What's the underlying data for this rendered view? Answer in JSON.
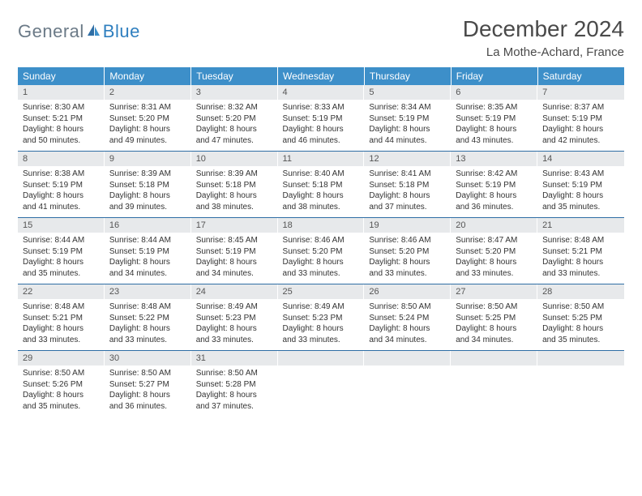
{
  "logo": {
    "part1": "General",
    "part2": "Blue"
  },
  "title": "December 2024",
  "location": "La Mothe-Achard, France",
  "colors": {
    "header_bg": "#3d8fc9",
    "row_divider": "#2f6ea5",
    "daynum_bg": "#e7e9eb",
    "logo_gray": "#6b7a87",
    "logo_blue": "#2f7fbf"
  },
  "layout": {
    "columns": 7,
    "rows": 5
  },
  "weekdays": [
    "Sunday",
    "Monday",
    "Tuesday",
    "Wednesday",
    "Thursday",
    "Friday",
    "Saturday"
  ],
  "days": [
    {
      "n": "1",
      "sunrise": "Sunrise: 8:30 AM",
      "sunset": "Sunset: 5:21 PM",
      "day1": "Daylight: 8 hours",
      "day2": "and 50 minutes."
    },
    {
      "n": "2",
      "sunrise": "Sunrise: 8:31 AM",
      "sunset": "Sunset: 5:20 PM",
      "day1": "Daylight: 8 hours",
      "day2": "and 49 minutes."
    },
    {
      "n": "3",
      "sunrise": "Sunrise: 8:32 AM",
      "sunset": "Sunset: 5:20 PM",
      "day1": "Daylight: 8 hours",
      "day2": "and 47 minutes."
    },
    {
      "n": "4",
      "sunrise": "Sunrise: 8:33 AM",
      "sunset": "Sunset: 5:19 PM",
      "day1": "Daylight: 8 hours",
      "day2": "and 46 minutes."
    },
    {
      "n": "5",
      "sunrise": "Sunrise: 8:34 AM",
      "sunset": "Sunset: 5:19 PM",
      "day1": "Daylight: 8 hours",
      "day2": "and 44 minutes."
    },
    {
      "n": "6",
      "sunrise": "Sunrise: 8:35 AM",
      "sunset": "Sunset: 5:19 PM",
      "day1": "Daylight: 8 hours",
      "day2": "and 43 minutes."
    },
    {
      "n": "7",
      "sunrise": "Sunrise: 8:37 AM",
      "sunset": "Sunset: 5:19 PM",
      "day1": "Daylight: 8 hours",
      "day2": "and 42 minutes."
    },
    {
      "n": "8",
      "sunrise": "Sunrise: 8:38 AM",
      "sunset": "Sunset: 5:19 PM",
      "day1": "Daylight: 8 hours",
      "day2": "and 41 minutes."
    },
    {
      "n": "9",
      "sunrise": "Sunrise: 8:39 AM",
      "sunset": "Sunset: 5:18 PM",
      "day1": "Daylight: 8 hours",
      "day2": "and 39 minutes."
    },
    {
      "n": "10",
      "sunrise": "Sunrise: 8:39 AM",
      "sunset": "Sunset: 5:18 PM",
      "day1": "Daylight: 8 hours",
      "day2": "and 38 minutes."
    },
    {
      "n": "11",
      "sunrise": "Sunrise: 8:40 AM",
      "sunset": "Sunset: 5:18 PM",
      "day1": "Daylight: 8 hours",
      "day2": "and 38 minutes."
    },
    {
      "n": "12",
      "sunrise": "Sunrise: 8:41 AM",
      "sunset": "Sunset: 5:18 PM",
      "day1": "Daylight: 8 hours",
      "day2": "and 37 minutes."
    },
    {
      "n": "13",
      "sunrise": "Sunrise: 8:42 AM",
      "sunset": "Sunset: 5:19 PM",
      "day1": "Daylight: 8 hours",
      "day2": "and 36 minutes."
    },
    {
      "n": "14",
      "sunrise": "Sunrise: 8:43 AM",
      "sunset": "Sunset: 5:19 PM",
      "day1": "Daylight: 8 hours",
      "day2": "and 35 minutes."
    },
    {
      "n": "15",
      "sunrise": "Sunrise: 8:44 AM",
      "sunset": "Sunset: 5:19 PM",
      "day1": "Daylight: 8 hours",
      "day2": "and 35 minutes."
    },
    {
      "n": "16",
      "sunrise": "Sunrise: 8:44 AM",
      "sunset": "Sunset: 5:19 PM",
      "day1": "Daylight: 8 hours",
      "day2": "and 34 minutes."
    },
    {
      "n": "17",
      "sunrise": "Sunrise: 8:45 AM",
      "sunset": "Sunset: 5:19 PM",
      "day1": "Daylight: 8 hours",
      "day2": "and 34 minutes."
    },
    {
      "n": "18",
      "sunrise": "Sunrise: 8:46 AM",
      "sunset": "Sunset: 5:20 PM",
      "day1": "Daylight: 8 hours",
      "day2": "and 33 minutes."
    },
    {
      "n": "19",
      "sunrise": "Sunrise: 8:46 AM",
      "sunset": "Sunset: 5:20 PM",
      "day1": "Daylight: 8 hours",
      "day2": "and 33 minutes."
    },
    {
      "n": "20",
      "sunrise": "Sunrise: 8:47 AM",
      "sunset": "Sunset: 5:20 PM",
      "day1": "Daylight: 8 hours",
      "day2": "and 33 minutes."
    },
    {
      "n": "21",
      "sunrise": "Sunrise: 8:48 AM",
      "sunset": "Sunset: 5:21 PM",
      "day1": "Daylight: 8 hours",
      "day2": "and 33 minutes."
    },
    {
      "n": "22",
      "sunrise": "Sunrise: 8:48 AM",
      "sunset": "Sunset: 5:21 PM",
      "day1": "Daylight: 8 hours",
      "day2": "and 33 minutes."
    },
    {
      "n": "23",
      "sunrise": "Sunrise: 8:48 AM",
      "sunset": "Sunset: 5:22 PM",
      "day1": "Daylight: 8 hours",
      "day2": "and 33 minutes."
    },
    {
      "n": "24",
      "sunrise": "Sunrise: 8:49 AM",
      "sunset": "Sunset: 5:23 PM",
      "day1": "Daylight: 8 hours",
      "day2": "and 33 minutes."
    },
    {
      "n": "25",
      "sunrise": "Sunrise: 8:49 AM",
      "sunset": "Sunset: 5:23 PM",
      "day1": "Daylight: 8 hours",
      "day2": "and 33 minutes."
    },
    {
      "n": "26",
      "sunrise": "Sunrise: 8:50 AM",
      "sunset": "Sunset: 5:24 PM",
      "day1": "Daylight: 8 hours",
      "day2": "and 34 minutes."
    },
    {
      "n": "27",
      "sunrise": "Sunrise: 8:50 AM",
      "sunset": "Sunset: 5:25 PM",
      "day1": "Daylight: 8 hours",
      "day2": "and 34 minutes."
    },
    {
      "n": "28",
      "sunrise": "Sunrise: 8:50 AM",
      "sunset": "Sunset: 5:25 PM",
      "day1": "Daylight: 8 hours",
      "day2": "and 35 minutes."
    },
    {
      "n": "29",
      "sunrise": "Sunrise: 8:50 AM",
      "sunset": "Sunset: 5:26 PM",
      "day1": "Daylight: 8 hours",
      "day2": "and 35 minutes."
    },
    {
      "n": "30",
      "sunrise": "Sunrise: 8:50 AM",
      "sunset": "Sunset: 5:27 PM",
      "day1": "Daylight: 8 hours",
      "day2": "and 36 minutes."
    },
    {
      "n": "31",
      "sunrise": "Sunrise: 8:50 AM",
      "sunset": "Sunset: 5:28 PM",
      "day1": "Daylight: 8 hours",
      "day2": "and 37 minutes."
    }
  ]
}
